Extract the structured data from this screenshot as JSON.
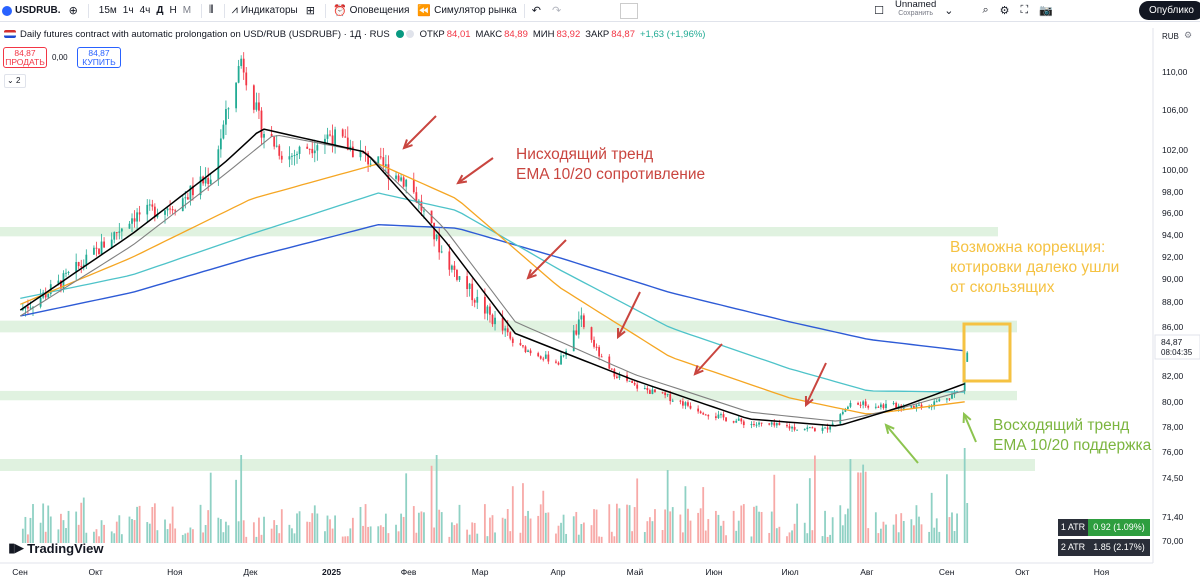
{
  "toolbar": {
    "symbol": "USDRUB.",
    "intervals": [
      "15м",
      "1ч",
      "4ч",
      "Д",
      "Н",
      "М"
    ],
    "active_interval": "Д",
    "indicators_label": "Индикаторы",
    "alerts_label": "Оповещения",
    "replay_label": "Симулятор рынка",
    "layout_name": "Unnamed",
    "layout_saved": "Сохранить",
    "publish_label": "Опублико"
  },
  "legend": {
    "title": "Daily futures contract with automatic prolongation on USD/RUB (USDRUBF) · 1Д · RUS",
    "open_label": "ОТКР",
    "open": "84,01",
    "high_label": "МАКС",
    "high": "84,89",
    "low_label": "МИН",
    "low": "83,92",
    "close_label": "ЗАКР",
    "close": "84,87",
    "change": "+1,63 (+1,96%)"
  },
  "trade": {
    "sell_price": "84,87",
    "sell_label": "ПРОДАТЬ",
    "buy_price": "84,87",
    "buy_label": "КУПИТЬ",
    "spread": "0,00",
    "collapsed_count": "2"
  },
  "price_axis": {
    "currency": "RUB",
    "last_price": "84,87",
    "countdown": "08:04:35"
  },
  "annotations": {
    "down_line1": "Нисходящий тренд",
    "down_line2": "EMA 10/20 сопротивление",
    "corr_line1": "Возможна коррекция:",
    "corr_line2": "котировки далеко ушли",
    "corr_line3": "от скользящих",
    "up_line1": "Восходящий тренд",
    "up_line2": "EMA 10/20 поддержка"
  },
  "atr": [
    {
      "label": "1 ATR",
      "value": "0.92 (1.09%)"
    },
    {
      "label": "2 ATR",
      "value": "1.85 (2.17%)"
    }
  ],
  "brand": "TradingView",
  "colors": {
    "up": "#22ab94",
    "down": "#f23645",
    "ema10": "#000000",
    "ema20": "#808080",
    "ema50": "#f5a623",
    "ema100": "#4ec3c9",
    "ema200": "#2e5bd6",
    "zone": "#d3ecd3",
    "arrow_down": "#c9453f",
    "arrow_up": "#8dc44f",
    "box": "#f5c242"
  },
  "chart_data": {
    "type": "candlestick",
    "x_ticks": [
      "Сен",
      "Окт",
      "Ноя",
      "Дек",
      "2025",
      "Фев",
      "Мар",
      "Апр",
      "Май",
      "Июн",
      "Июл",
      "Авг",
      "Сен",
      "Окт",
      "Ноя"
    ],
    "price_ticks": [
      "110,00",
      "106,00",
      "102,00",
      "100,00",
      "98,00",
      "96,00",
      "94,00",
      "92,00",
      "90,00",
      "88,00",
      "86,00",
      "82,00",
      "80,00",
      "78,00",
      "76,00"
    ],
    "volume_ticks": [
      "74,50",
      "71,40",
      "70,00"
    ],
    "ylim": [
      76,
      112
    ],
    "support_zones": [
      [
        94.8,
        95.6
      ],
      [
        86.6,
        87.6
      ],
      [
        80.8,
        81.6
      ]
    ],
    "close_anchors": [
      [
        "2024-09-01",
        88.5
      ],
      [
        "2024-09-15",
        90.5
      ],
      [
        "2024-10-01",
        93.5
      ],
      [
        "2024-10-15",
        96.5
      ],
      [
        "2024-11-01",
        97.5
      ],
      [
        "2024-11-15",
        100.0
      ],
      [
        "2024-11-27",
        110.0
      ],
      [
        "2024-12-05",
        104.0
      ],
      [
        "2024-12-15",
        101.5
      ],
      [
        "2025-01-01",
        103.5
      ],
      [
        "2025-01-15",
        101.5
      ],
      [
        "2025-02-01",
        99.5
      ],
      [
        "2025-02-15",
        93.0
      ],
      [
        "2025-03-01",
        89.0
      ],
      [
        "2025-03-15",
        85.5
      ],
      [
        "2025-04-01",
        84.0
      ],
      [
        "2025-04-10",
        87.5
      ],
      [
        "2025-04-20",
        83.5
      ],
      [
        "2025-05-01",
        82.0
      ],
      [
        "2025-05-15",
        81.0
      ],
      [
        "2025-06-01",
        79.5
      ],
      [
        "2025-06-15",
        78.8
      ],
      [
        "2025-07-01",
        78.5
      ],
      [
        "2025-07-15",
        78.3
      ],
      [
        "2025-07-25",
        80.5
      ],
      [
        "2025-08-10",
        80.3
      ],
      [
        "2025-08-25",
        80.4
      ],
      [
        "2025-09-05",
        81.5
      ],
      [
        "2025-09-09",
        84.87
      ]
    ],
    "ema": {
      "ema10": [
        [
          "2024-09-01",
          88.5
        ],
        [
          "2024-10-15",
          95.0
        ],
        [
          "2024-11-20",
          101.0
        ],
        [
          "2024-12-05",
          104.0
        ],
        [
          "2025-01-15",
          102.0
        ],
        [
          "2025-02-15",
          94.5
        ],
        [
          "2025-03-15",
          86.5
        ],
        [
          "2025-05-01",
          82.5
        ],
        [
          "2025-06-15",
          79.2
        ],
        [
          "2025-07-20",
          78.6
        ],
        [
          "2025-08-15",
          80.3
        ],
        [
          "2025-09-09",
          82.3
        ]
      ],
      "ema20": [
        [
          "2024-09-01",
          88.0
        ],
        [
          "2024-10-15",
          94.0
        ],
        [
          "2024-11-20",
          100.0
        ],
        [
          "2024-12-10",
          103.5
        ],
        [
          "2025-01-15",
          102.0
        ],
        [
          "2025-02-15",
          95.5
        ],
        [
          "2025-03-15",
          87.5
        ],
        [
          "2025-05-01",
          83.0
        ],
        [
          "2025-06-15",
          79.8
        ],
        [
          "2025-07-20",
          79.0
        ],
        [
          "2025-08-15",
          80.2
        ],
        [
          "2025-09-09",
          81.7
        ]
      ],
      "ema50": [
        [
          "2024-09-01",
          89.0
        ],
        [
          "2024-10-15",
          93.0
        ],
        [
          "2024-12-01",
          98.0
        ],
        [
          "2025-01-20",
          101.0
        ],
        [
          "2025-02-20",
          98.0
        ],
        [
          "2025-04-01",
          90.5
        ],
        [
          "2025-05-15",
          84.5
        ],
        [
          "2025-07-01",
          81.0
        ],
        [
          "2025-08-01",
          79.6
        ],
        [
          "2025-09-09",
          80.7
        ]
      ],
      "ema100": [
        [
          "2024-09-01",
          89.5
        ],
        [
          "2024-10-15",
          91.5
        ],
        [
          "2024-12-01",
          95.0
        ],
        [
          "2025-01-20",
          98.5
        ],
        [
          "2025-02-20",
          97.0
        ],
        [
          "2025-04-01",
          92.0
        ],
        [
          "2025-05-15",
          87.0
        ],
        [
          "2025-07-01",
          83.5
        ],
        [
          "2025-08-01",
          81.6
        ],
        [
          "2025-09-09",
          81.5
        ]
      ],
      "ema200": [
        [
          "2024-09-01",
          88.0
        ],
        [
          "2024-10-15",
          90.0
        ],
        [
          "2024-12-01",
          93.0
        ],
        [
          "2025-01-20",
          95.8
        ],
        [
          "2025-02-20",
          95.5
        ],
        [
          "2025-04-01",
          93.0
        ],
        [
          "2025-05-15",
          90.0
        ],
        [
          "2025-07-01",
          87.5
        ],
        [
          "2025-08-01",
          86.0
        ],
        [
          "2025-09-09",
          85.0
        ]
      ]
    }
  }
}
